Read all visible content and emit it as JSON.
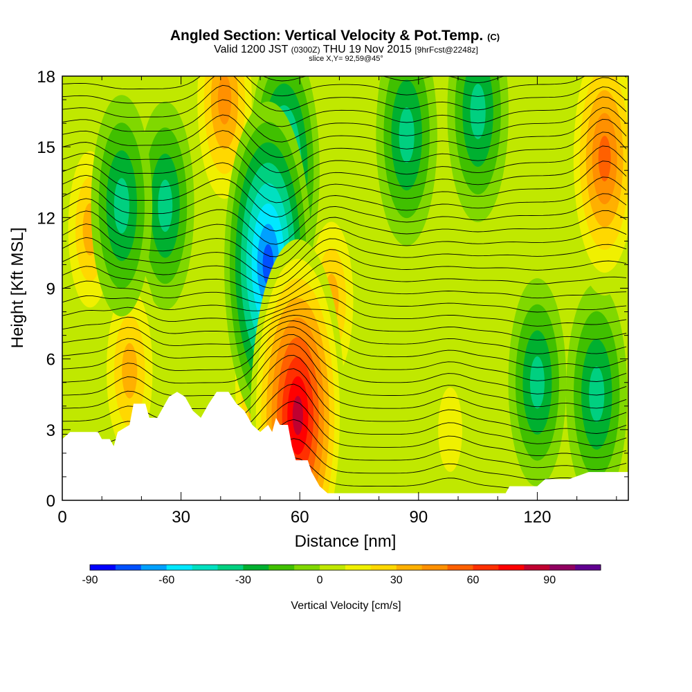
{
  "title": {
    "main": "Angled Section: Vertical Velocity & Pot.Temp.",
    "main_suffix": "(C)",
    "valid_prefix": "Valid 1200 JST",
    "valid_utc": "(0300Z)",
    "valid_date": "THU 19 Nov 2015",
    "forecast": "[9hrFcst@2248z]",
    "slice": "slice X,Y= 92,59@45°"
  },
  "chart_data": {
    "type": "heatmap",
    "xlabel": "Distance [nm]",
    "ylabel": "Height [Kft MSL]",
    "xlim": [
      0,
      143
    ],
    "ylim": [
      0,
      18
    ],
    "x_ticks": [
      "0",
      "30",
      "60",
      "90",
      "120"
    ],
    "y_ticks": [
      "0",
      "3",
      "6",
      "9",
      "12",
      "15",
      "18"
    ],
    "colorbar": {
      "label": "Vertical Velocity [cm/s]",
      "tick_labels": [
        "-90",
        "-60",
        "-30",
        "0",
        "30",
        "60",
        "90"
      ],
      "levels": [
        -90,
        -80,
        -70,
        -60,
        -50,
        -40,
        -30,
        -20,
        -10,
        0,
        10,
        20,
        30,
        40,
        50,
        60,
        70,
        80,
        90,
        100,
        110
      ],
      "colors": [
        "#0000ff",
        "#0050ff",
        "#00a0ff",
        "#00e8ff",
        "#00e0c0",
        "#00d080",
        "#00b030",
        "#40c000",
        "#80d800",
        "#c0e800",
        "#f0f000",
        "#ffd800",
        "#ffb000",
        "#ff9000",
        "#ff6000",
        "#ff3000",
        "#ff0000",
        "#c00030",
        "#900060",
        "#600090"
      ]
    },
    "terrain_profile_kft": [
      [
        0,
        2.6
      ],
      [
        2,
        2.9
      ],
      [
        9,
        2.9
      ],
      [
        10,
        2.6
      ],
      [
        12,
        2.6
      ],
      [
        13,
        2.3
      ],
      [
        14,
        2.9
      ],
      [
        17,
        3.2
      ],
      [
        18,
        4.1
      ],
      [
        21,
        4.1
      ],
      [
        22,
        3.5
      ],
      [
        24,
        3.5
      ],
      [
        26,
        4.1
      ],
      [
        27,
        4.4
      ],
      [
        29,
        4.6
      ],
      [
        31,
        4.4
      ],
      [
        33,
        3.8
      ],
      [
        35,
        3.5
      ],
      [
        37,
        4.1
      ],
      [
        39,
        4.6
      ],
      [
        42,
        4.6
      ],
      [
        44,
        4.1
      ],
      [
        46,
        3.8
      ],
      [
        47,
        3.5
      ],
      [
        48,
        3.2
      ],
      [
        50,
        2.9
      ],
      [
        52,
        3.2
      ],
      [
        53,
        2.9
      ],
      [
        54,
        3.5
      ],
      [
        55,
        3.2
      ],
      [
        57,
        3.2
      ],
      [
        58,
        2.3
      ],
      [
        59,
        1.7
      ],
      [
        62,
        1.7
      ],
      [
        63,
        1.2
      ],
      [
        65,
        0.6
      ],
      [
        67,
        0.3
      ],
      [
        112,
        0.3
      ],
      [
        113,
        0.6
      ],
      [
        120,
        0.6
      ],
      [
        122,
        0.9
      ],
      [
        128,
        0.9
      ],
      [
        133,
        1.2
      ],
      [
        143,
        1.2
      ]
    ],
    "updraft_cores": [
      {
        "x": 7,
        "z": 11.5,
        "w": 40
      },
      {
        "x": 17,
        "z": 5.5,
        "w": 45
      },
      {
        "x": 41,
        "z": 17,
        "w": 55
      },
      {
        "x": 52.5,
        "z": 5,
        "w": 75
      },
      {
        "x": 59.5,
        "z": 3.6,
        "w": 95
      },
      {
        "x": 68,
        "z": 8.5,
        "w": 40
      },
      {
        "x": 98,
        "z": 3,
        "w": 25
      },
      {
        "x": 137,
        "z": 14.5,
        "w": 65
      }
    ],
    "downdraft_cores": [
      {
        "x": 15,
        "z": 12.5,
        "w": -45
      },
      {
        "x": 26,
        "z": 12.5,
        "w": -40
      },
      {
        "x": 52,
        "z": 10,
        "w": -85
      },
      {
        "x": 56,
        "z": 14,
        "w": -60
      },
      {
        "x": 87,
        "z": 15.5,
        "w": -45
      },
      {
        "x": 105,
        "z": 16.5,
        "w": -45
      },
      {
        "x": 120,
        "z": 5,
        "w": -40
      },
      {
        "x": 135,
        "z": 4.5,
        "w": -45
      }
    ]
  }
}
